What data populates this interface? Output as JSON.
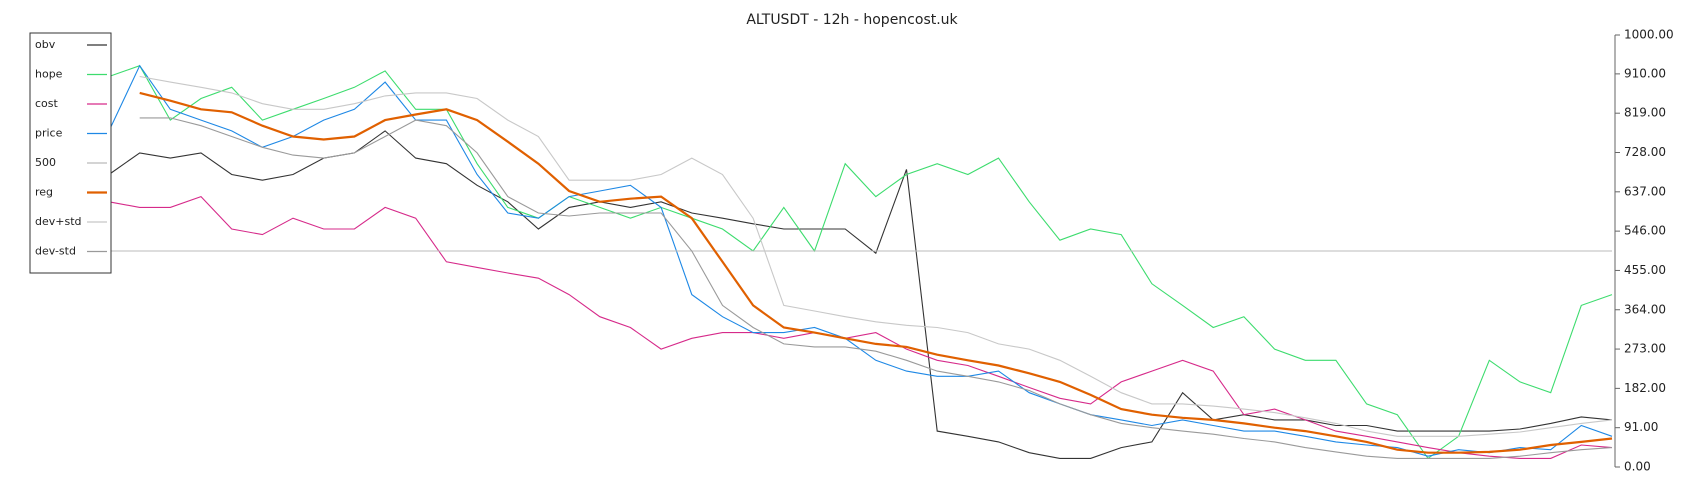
{
  "chart_data": {
    "type": "line",
    "title": "ALTUSDT - 12h - hopencost.uk",
    "ylim": [
      0,
      1000
    ],
    "yticks": [
      {
        "value": 0,
        "label": "0.00"
      },
      {
        "value": 91,
        "label": "91.00"
      },
      {
        "value": 182,
        "label": "182.00"
      },
      {
        "value": 273,
        "label": "273.00"
      },
      {
        "value": 364,
        "label": "364.00"
      },
      {
        "value": 455,
        "label": "455.00"
      },
      {
        "value": 546,
        "label": "546.00"
      },
      {
        "value": 637,
        "label": "637.00"
      },
      {
        "value": 728,
        "label": "728.00"
      },
      {
        "value": 819,
        "label": "819.00"
      },
      {
        "value": 910,
        "label": "910.00"
      },
      {
        "value": 1000,
        "label": "1000.00"
      }
    ],
    "legend": "top-left",
    "series": [
      {
        "name": "obv",
        "color": "#333333",
        "values": [
          677,
          727,
          715,
          727,
          677,
          664,
          677,
          715,
          727,
          778,
          715,
          702,
          652,
          614,
          551,
          601,
          614,
          601,
          614,
          588,
          576,
          563,
          551,
          551,
          551,
          495,
          689,
          83,
          71,
          58,
          33,
          20,
          20,
          45,
          58,
          172,
          109,
          121,
          109,
          109,
          96,
          96,
          83,
          83,
          83,
          83,
          88,
          101,
          116,
          109
        ]
      },
      {
        "name": "hope",
        "color": "#3ddc6e",
        "values": [
          904,
          929,
          803,
          853,
          879,
          803,
          828,
          853,
          879,
          917,
          828,
          828,
          702,
          601,
          576,
          626,
          601,
          576,
          601,
          576,
          551,
          500,
          601,
          500,
          702,
          626,
          677,
          702,
          677,
          715,
          614,
          525,
          551,
          538,
          424,
          374,
          323,
          348,
          273,
          247,
          247,
          146,
          121,
          20,
          71,
          247,
          197,
          172,
          374,
          399
        ]
      },
      {
        "name": "cost",
        "color": "#d62a8a",
        "values": [
          614,
          601,
          601,
          626,
          551,
          538,
          576,
          551,
          551,
          601,
          576,
          475,
          462,
          449,
          437,
          399,
          348,
          323,
          273,
          298,
          311,
          311,
          298,
          311,
          298,
          311,
          273,
          247,
          235,
          210,
          184,
          159,
          146,
          197,
          222,
          247,
          222,
          121,
          134,
          109,
          83,
          71,
          58,
          45,
          33,
          25,
          20,
          20,
          51,
          45
        ]
      },
      {
        "name": "price",
        "color": "#1e88e5",
        "values": [
          778,
          929,
          828,
          803,
          778,
          740,
          765,
          803,
          828,
          891,
          803,
          803,
          677,
          588,
          576,
          626,
          639,
          652,
          601,
          399,
          348,
          311,
          311,
          323,
          298,
          247,
          222,
          210,
          210,
          222,
          172,
          146,
          121,
          109,
          96,
          109,
          96,
          83,
          83,
          71,
          58,
          51,
          45,
          25,
          40,
          33,
          45,
          40,
          96,
          71
        ]
      },
      {
        "name": "500",
        "color": "#bbbbbb",
        "values": [
          500,
          500,
          500,
          500,
          500,
          500,
          500,
          500,
          500,
          500,
          500,
          500,
          500,
          500,
          500,
          500,
          500,
          500,
          500,
          500,
          500,
          500,
          500,
          500,
          500,
          500,
          500,
          500,
          500,
          500,
          500,
          500,
          500,
          500,
          500,
          500,
          500,
          500,
          500,
          500,
          500,
          500,
          500,
          500,
          500,
          500,
          500,
          500,
          500,
          500
        ]
      },
      {
        "name": "reg",
        "color": "#e06000",
        "values": [
          null,
          866,
          848,
          828,
          821,
          790,
          765,
          758,
          765,
          803,
          816,
          828,
          803,
          753,
          702,
          639,
          614,
          621,
          626,
          576,
          475,
          374,
          323,
          311,
          298,
          285,
          278,
          260,
          247,
          235,
          217,
          197,
          167,
          134,
          121,
          114,
          109,
          101,
          91,
          83,
          71,
          58,
          40,
          33,
          33,
          35,
          40,
          51,
          58,
          66
        ]
      },
      {
        "name": "dev+std",
        "color": "#c8c8c8",
        "values": [
          null,
          904,
          891,
          879,
          866,
          841,
          828,
          828,
          841,
          859,
          866,
          866,
          853,
          803,
          765,
          664,
          664,
          664,
          677,
          715,
          677,
          576,
          374,
          361,
          348,
          336,
          328,
          323,
          311,
          285,
          273,
          247,
          210,
          172,
          146,
          146,
          141,
          134,
          126,
          114,
          101,
          83,
          71,
          71,
          71,
          76,
          81,
          91,
          101,
          109
        ]
      },
      {
        "name": "dev-std",
        "color": "#9a9a9a",
        "values": [
          null,
          808,
          808,
          790,
          765,
          740,
          722,
          715,
          727,
          765,
          803,
          790,
          727,
          626,
          588,
          581,
          588,
          588,
          588,
          500,
          374,
          323,
          285,
          278,
          278,
          268,
          247,
          222,
          210,
          197,
          177,
          146,
          121,
          101,
          91,
          83,
          76,
          66,
          58,
          45,
          35,
          25,
          20,
          20,
          20,
          20,
          25,
          33,
          40,
          45
        ]
      }
    ]
  }
}
